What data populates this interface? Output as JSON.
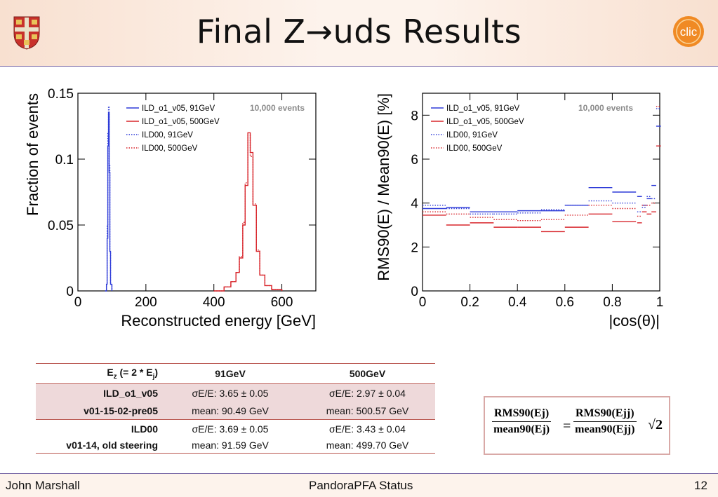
{
  "title": "Final Z→uds Results",
  "footer": {
    "author": "John Marshall",
    "talk": "PandoraPFA Status",
    "page": "12"
  },
  "logo_text": "clic",
  "chart_data": [
    {
      "type": "line",
      "xlabel": "Reconstructed energy [GeV]",
      "ylabel": "Fraction of events",
      "xlim": [
        0,
        700
      ],
      "ylim": [
        0,
        0.15
      ],
      "x_ticks": [
        "0",
        "200",
        "400",
        "600"
      ],
      "y_ticks": [
        "0",
        "0.05",
        "0.1",
        "0.15"
      ],
      "annotation": "10,000 events",
      "legend_position": "top-right",
      "series": [
        {
          "name": "ILD_o1_v05, 91GeV",
          "color": "#2f3cd8",
          "style": "solid",
          "x": [
            80,
            84,
            86,
            88,
            90,
            92,
            94,
            96,
            100
          ],
          "y": [
            0,
            0.005,
            0.04,
            0.11,
            0.135,
            0.09,
            0.03,
            0.005,
            0
          ]
        },
        {
          "name": "ILD_o1_v05, 500GeV",
          "color": "#d8262c",
          "style": "solid",
          "x": [
            400,
            430,
            450,
            465,
            475,
            485,
            492,
            500,
            507,
            515,
            525,
            535,
            550,
            570,
            600
          ],
          "y": [
            0,
            0.003,
            0.007,
            0.014,
            0.025,
            0.05,
            0.08,
            0.12,
            0.105,
            0.065,
            0.03,
            0.012,
            0.004,
            0.001,
            0
          ]
        },
        {
          "name": "ILD00, 91GeV",
          "color": "#2f3cd8",
          "style": "dotted",
          "x": [
            80,
            84,
            86,
            88,
            90,
            92,
            94,
            96,
            100
          ],
          "y": [
            0,
            0.006,
            0.05,
            0.12,
            0.14,
            0.095,
            0.03,
            0.005,
            0
          ]
        },
        {
          "name": "ILD00, 500GeV",
          "color": "#d8262c",
          "style": "dotted",
          "x": [
            400,
            430,
            450,
            465,
            475,
            485,
            492,
            500,
            507,
            515,
            525,
            535,
            550,
            570,
            600
          ],
          "y": [
            0,
            0.003,
            0.007,
            0.014,
            0.026,
            0.052,
            0.082,
            0.118,
            0.102,
            0.066,
            0.031,
            0.012,
            0.004,
            0.001,
            0
          ]
        }
      ]
    },
    {
      "type": "line",
      "xlabel": "|cos(θ)|",
      "ylabel": "RMS90(E) / Mean90(E) [%]",
      "xlim": [
        0,
        1
      ],
      "ylim": [
        0,
        9
      ],
      "x_ticks": [
        "0",
        "0.2",
        "0.4",
        "0.6",
        "0.8",
        "1"
      ],
      "y_ticks": [
        "0",
        "2",
        "4",
        "6",
        "8"
      ],
      "annotation": "10,000 events",
      "legend_position": "top-left",
      "series": [
        {
          "name": "ILD_o1_v05, 91GeV",
          "color": "#2f3cd8",
          "style": "solid",
          "x": [
            0.05,
            0.15,
            0.25,
            0.35,
            0.45,
            0.55,
            0.65,
            0.75,
            0.85,
            0.915,
            0.935,
            0.955,
            0.975,
            0.995
          ],
          "y": [
            3.75,
            3.8,
            3.6,
            3.6,
            3.65,
            3.65,
            3.9,
            4.7,
            4.5,
            4.3,
            3.9,
            4.2,
            4.8,
            7.5
          ]
        },
        {
          "name": "ILD_o1_v05, 500GeV",
          "color": "#d8262c",
          "style": "solid",
          "x": [
            0.05,
            0.15,
            0.25,
            0.35,
            0.45,
            0.55,
            0.65,
            0.75,
            0.85,
            0.915,
            0.935,
            0.955,
            0.975,
            0.995
          ],
          "y": [
            3.45,
            3.0,
            3.1,
            2.9,
            2.9,
            2.7,
            2.9,
            3.5,
            3.15,
            3.1,
            3.6,
            3.5,
            3.6,
            6.6
          ]
        },
        {
          "name": "ILD00, 91GeV",
          "color": "#2f3cd8",
          "style": "dotted",
          "x": [
            0.05,
            0.15,
            0.25,
            0.35,
            0.45,
            0.55,
            0.65,
            0.75,
            0.85,
            0.915,
            0.935,
            0.955,
            0.975,
            0.995
          ],
          "y": [
            3.9,
            3.75,
            3.5,
            3.5,
            3.55,
            3.7,
            3.9,
            4.1,
            4.0,
            3.6,
            3.8,
            4.3,
            4.2,
            8.3
          ]
        },
        {
          "name": "ILD00, 500GeV",
          "color": "#d8262c",
          "style": "dotted",
          "x": [
            0.05,
            0.15,
            0.25,
            0.35,
            0.45,
            0.55,
            0.65,
            0.75,
            0.85,
            0.915,
            0.935,
            0.955,
            0.975,
            0.995
          ],
          "y": [
            3.6,
            3.5,
            3.35,
            3.25,
            3.2,
            3.25,
            3.45,
            3.9,
            3.75,
            3.4,
            3.9,
            3.9,
            4.0,
            8.4
          ]
        }
      ]
    }
  ],
  "table": {
    "header": [
      "Ez (= 2 * Ej)",
      "91GeV",
      "500GeV"
    ],
    "rows": [
      {
        "label": [
          "ILD_o1_v05",
          "v01-15-02-pre05"
        ],
        "c91": [
          "σE/E: 3.65 ± 0.05",
          "mean: 90.49 GeV"
        ],
        "c500": [
          "σE/E: 2.97 ± 0.04",
          "mean: 500.57 GeV"
        ]
      },
      {
        "label": [
          "ILD00",
          "v01-14, old steering"
        ],
        "c91": [
          "σE/E: 3.69 ± 0.05",
          "mean: 91.59 GeV"
        ],
        "c500": [
          "σE/E: 3.43 ± 0.04",
          "mean: 499.70 GeV"
        ]
      }
    ]
  },
  "formula": {
    "lhs_num": "RMS90(Ej)",
    "lhs_den": "mean90(Ej)",
    "rhs_num": "RMS90(Ejj)",
    "rhs_den": "mean90(Ejj)",
    "factor": "√2"
  }
}
